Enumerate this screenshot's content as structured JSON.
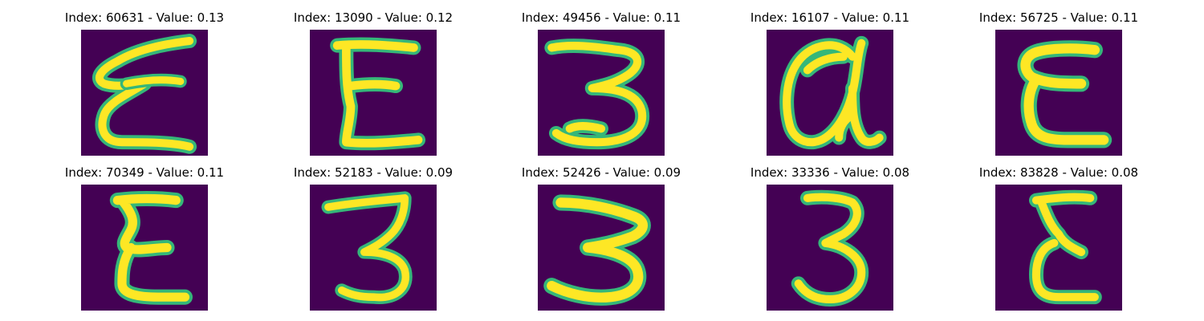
{
  "colors": {
    "background": "#440154",
    "stroke_edge": "#35b779",
    "stroke_core": "#fde725"
  },
  "panels": [
    {
      "title": "Index: 60631 - Value: 0.13",
      "glyph": "e-icon"
    },
    {
      "title": "Index: 13090 - Value: 0.12",
      "glyph": "e-icon"
    },
    {
      "title": "Index: 49456 - Value: 0.11",
      "glyph": "three-icon"
    },
    {
      "title": "Index: 16107 - Value: 0.11",
      "glyph": "a-icon"
    },
    {
      "title": "Index: 56725 - Value: 0.11",
      "glyph": "e-icon"
    },
    {
      "title": "Index: 70349 - Value: 0.11",
      "glyph": "e-icon"
    },
    {
      "title": "Index: 52183 - Value: 0.09",
      "glyph": "three-icon"
    },
    {
      "title": "Index: 52426 - Value: 0.09",
      "glyph": "three-icon"
    },
    {
      "title": "Index: 33336 - Value: 0.08",
      "glyph": "three-icon"
    },
    {
      "title": "Index: 83828 - Value: 0.08",
      "glyph": "e-icon"
    }
  ]
}
